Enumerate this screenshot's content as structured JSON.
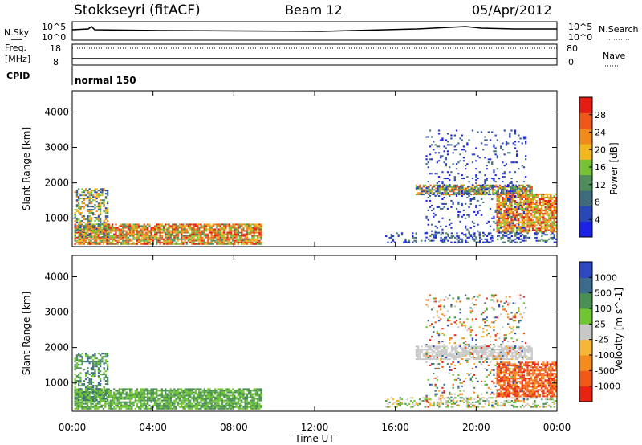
{
  "header": {
    "station": "Stokkseyri (fitACF)",
    "beam": "Beam 12",
    "date": "05/Apr/2012"
  },
  "noise_panel": {
    "left_label": "N.Sky",
    "right_label": "N.Search",
    "left_ticks": [
      "10^5",
      "10^0"
    ],
    "right_ticks": [
      "10^5",
      "10^0"
    ]
  },
  "freq_panel": {
    "left_label_line1": "Freq.",
    "left_label_line2": "[MHz]",
    "left_ticks": [
      "18",
      "8"
    ],
    "right_ticks": [
      "80",
      "0"
    ],
    "right_label": "Nave"
  },
  "cpid_panel": {
    "label": "CPID",
    "mode": "normal 150"
  },
  "time_axis": {
    "label": "Time UT",
    "ticks": [
      "00:00",
      "04:00",
      "08:00",
      "12:00",
      "16:00",
      "20:00",
      "00:00"
    ]
  },
  "colors": {
    "power": [
      "#1b21e6",
      "#2a47b8",
      "#3f6c7a",
      "#4f8e5c",
      "#77c234",
      "#f2b71f",
      "#f08a1a",
      "#ef5818",
      "#e41c12"
    ],
    "velocity": [
      "#e82314",
      "#f05a16",
      "#f48b1c",
      "#f6b534",
      "#c8c8c8",
      "#6fc532",
      "#4a8f54",
      "#3c6a8a",
      "#2e48c0"
    ]
  },
  "chart_data": [
    {
      "type": "heatmap",
      "title": "Power",
      "ylabel": "Slant Range [km]",
      "yticks": [
        "1000",
        "2000",
        "3000",
        "4000"
      ],
      "ylim": [
        200,
        4600
      ],
      "xlim_hours": [
        0,
        24
      ],
      "colorbar": {
        "label": "Power [dB]",
        "ticks": [
          "4",
          "8",
          "12",
          "16",
          "20",
          "24",
          "28"
        ],
        "range": [
          0,
          30
        ]
      },
      "regions": [
        {
          "t": [
            0.1,
            9.4
          ],
          "r": [
            250,
            850
          ],
          "levels": [
            3,
            8
          ],
          "density": 0.85
        },
        {
          "t": [
            0.1,
            1.8
          ],
          "r": [
            450,
            1850
          ],
          "levels": [
            1,
            6
          ],
          "density": 0.55
        },
        {
          "t": [
            15.5,
            24
          ],
          "r": [
            300,
            600
          ],
          "levels": [
            0,
            3
          ],
          "density": 0.3
        },
        {
          "t": [
            17.0,
            22.8
          ],
          "r": [
            1650,
            1950
          ],
          "levels": [
            1,
            7
          ],
          "density": 0.75
        },
        {
          "t": [
            21.0,
            24
          ],
          "r": [
            600,
            1700
          ],
          "levels": [
            4,
            8
          ],
          "density": 0.8
        },
        {
          "t": [
            17.5,
            22.5
          ],
          "r": [
            300,
            3500
          ],
          "levels": [
            0,
            2
          ],
          "density": 0.12
        }
      ]
    },
    {
      "type": "heatmap",
      "title": "Velocity",
      "ylabel": "Slant Range [km]",
      "yticks": [
        "1000",
        "2000",
        "3000",
        "4000"
      ],
      "ylim": [
        200,
        4600
      ],
      "xlim_hours": [
        0,
        24
      ],
      "colorbar": {
        "label": "Velocity [m s^-1]",
        "ticks": [
          "-1000",
          "-500",
          "-100",
          "-25",
          "25",
          "100",
          "500",
          "1000"
        ],
        "range": [
          -1000,
          1000
        ]
      },
      "regions": [
        {
          "t": [
            0.1,
            9.4
          ],
          "r": [
            250,
            850
          ],
          "levels": [
            5,
            6
          ],
          "density": 0.8
        },
        {
          "t": [
            0.1,
            1.8
          ],
          "r": [
            450,
            1850
          ],
          "levels": [
            5,
            7
          ],
          "density": 0.55
        },
        {
          "t": [
            15.5,
            24
          ],
          "r": [
            300,
            600
          ],
          "levels": [
            3,
            6
          ],
          "density": 0.3
        },
        {
          "t": [
            17.0,
            22.8
          ],
          "r": [
            1650,
            2050
          ],
          "levels": [
            4,
            4
          ],
          "density": 0.75
        },
        {
          "t": [
            21.0,
            24
          ],
          "r": [
            600,
            1600
          ],
          "levels": [
            0,
            2
          ],
          "density": 0.8
        },
        {
          "t": [
            17.5,
            22.5
          ],
          "r": [
            300,
            3500
          ],
          "levels": [
            0,
            8
          ],
          "density": 0.12
        }
      ]
    }
  ]
}
